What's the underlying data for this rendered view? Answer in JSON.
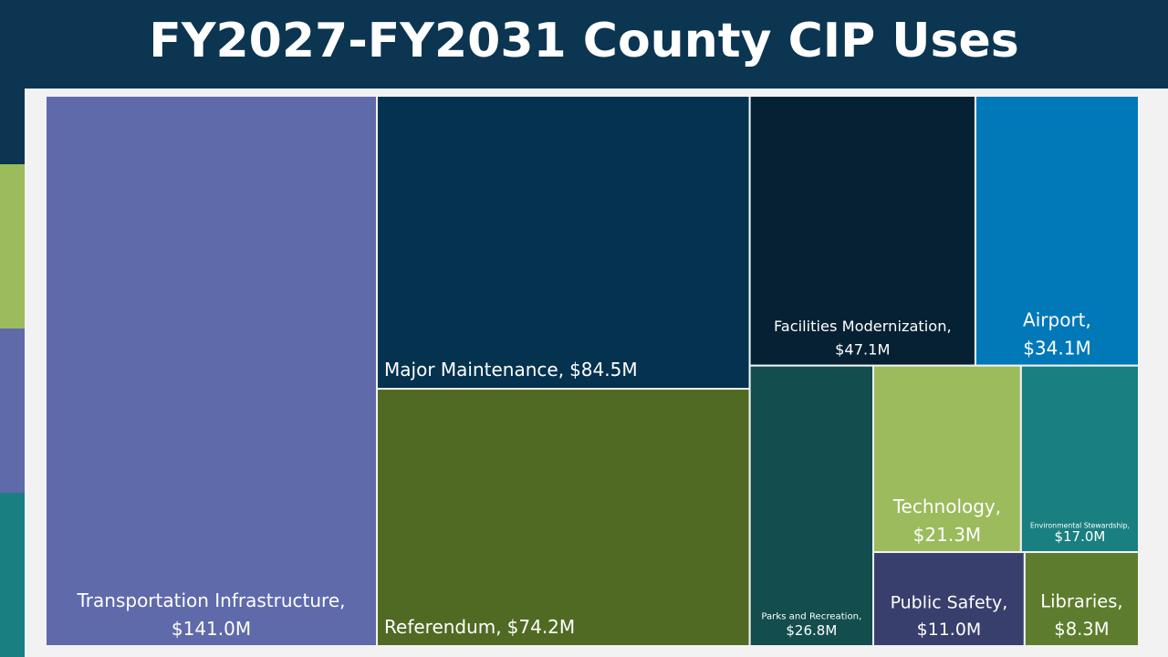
{
  "chart_data": {
    "type": "treemap",
    "title": "FY2027-FY2031 County CIP Uses",
    "categories": [
      "Transportation Infrastructure,",
      "Major Maintenance,",
      "Referendum,",
      "Facilities Modernization,",
      "Airport,",
      "Parks and Recreation,",
      "Technology,",
      "Environmental Stewardship,",
      "Public Safety,",
      "Libraries,"
    ],
    "values": [
      141.0,
      84.5,
      74.2,
      47.1,
      34.1,
      26.8,
      21.3,
      17.0,
      11.0,
      8.3
    ],
    "value_labels": [
      "$141.0M",
      "$84.5M",
      "$74.2M",
      "$47.1M",
      "$34.1M",
      "$26.8M",
      "$21.3M",
      "$17.0M",
      "$11.0M",
      "$8.3M"
    ],
    "colors": [
      "#5f6aab",
      "#04324f",
      "#506a23",
      "#062133",
      "#0178b8",
      "#134d4e",
      "#9bbb5c",
      "#1a7f80",
      "#383f6c",
      "#5d7c2d"
    ]
  }
}
